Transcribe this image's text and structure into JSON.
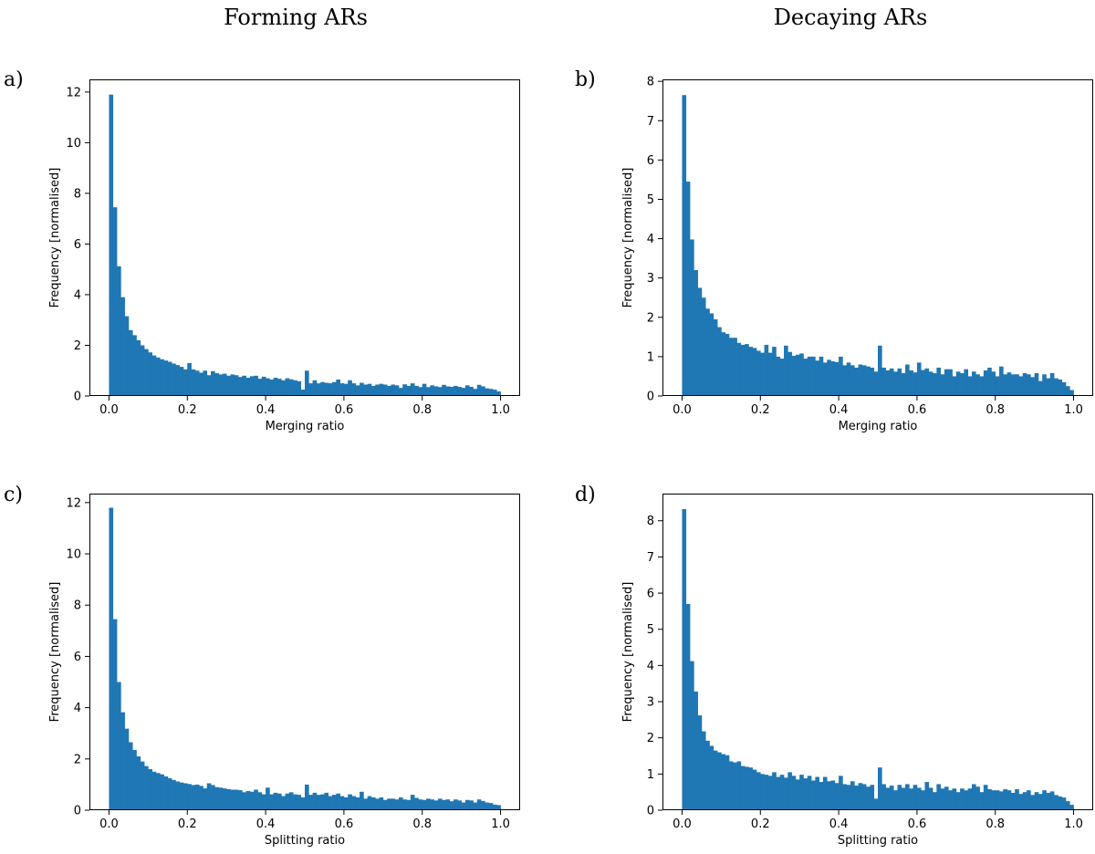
{
  "column_titles": [
    "Forming ARs",
    "Decaying ARs"
  ],
  "colors": {
    "bar": "#1f77b4"
  },
  "chart_data": [
    {
      "type": "bar",
      "panel_label": "a)",
      "xlabel": "Merging ratio",
      "ylabel": "Frequency [normalised]",
      "xlim": [
        -0.05,
        1.05
      ],
      "ylim": [
        0,
        12.5
      ],
      "xticks": [
        0.0,
        0.2,
        0.4,
        0.6,
        0.8,
        1.0
      ],
      "xtick_labels": [
        "0.0",
        "0.2",
        "0.4",
        "0.6",
        "0.8",
        "1.0"
      ],
      "yticks": [
        0,
        2,
        4,
        6,
        8,
        10,
        12
      ],
      "bin_width": 0.01,
      "x": [
        0.0,
        0.01,
        0.02,
        0.03,
        0.04,
        0.05,
        0.06,
        0.07,
        0.08,
        0.09,
        0.1,
        0.11,
        0.12,
        0.13,
        0.14,
        0.15,
        0.16,
        0.17,
        0.18,
        0.19,
        0.2,
        0.21,
        0.22,
        0.23,
        0.24,
        0.25,
        0.26,
        0.27,
        0.28,
        0.29,
        0.3,
        0.31,
        0.32,
        0.33,
        0.34,
        0.35,
        0.36,
        0.37,
        0.38,
        0.39,
        0.4,
        0.41,
        0.42,
        0.43,
        0.44,
        0.45,
        0.46,
        0.47,
        0.48,
        0.49,
        0.5,
        0.51,
        0.52,
        0.53,
        0.54,
        0.55,
        0.56,
        0.57,
        0.58,
        0.59,
        0.6,
        0.61,
        0.62,
        0.63,
        0.64,
        0.65,
        0.66,
        0.67,
        0.68,
        0.69,
        0.7,
        0.71,
        0.72,
        0.73,
        0.74,
        0.75,
        0.76,
        0.77,
        0.78,
        0.79,
        0.8,
        0.81,
        0.82,
        0.83,
        0.84,
        0.85,
        0.86,
        0.87,
        0.88,
        0.89,
        0.9,
        0.91,
        0.92,
        0.93,
        0.94,
        0.95,
        0.96,
        0.97,
        0.98,
        0.99
      ],
      "values": [
        11.9,
        7.45,
        5.12,
        3.9,
        3.15,
        2.6,
        2.4,
        2.2,
        2.0,
        1.85,
        1.72,
        1.6,
        1.52,
        1.45,
        1.4,
        1.35,
        1.28,
        1.22,
        1.15,
        1.05,
        1.3,
        1.05,
        1.0,
        0.92,
        1.0,
        0.82,
        0.98,
        0.9,
        0.85,
        0.88,
        0.8,
        0.85,
        0.82,
        0.75,
        0.8,
        0.72,
        0.78,
        0.8,
        0.68,
        0.76,
        0.7,
        0.65,
        0.72,
        0.68,
        0.62,
        0.7,
        0.66,
        0.62,
        0.58,
        0.25,
        1.0,
        0.5,
        0.62,
        0.5,
        0.55,
        0.52,
        0.5,
        0.55,
        0.65,
        0.5,
        0.48,
        0.62,
        0.5,
        0.42,
        0.52,
        0.45,
        0.48,
        0.4,
        0.45,
        0.48,
        0.45,
        0.4,
        0.45,
        0.42,
        0.32,
        0.46,
        0.4,
        0.5,
        0.4,
        0.35,
        0.48,
        0.35,
        0.42,
        0.38,
        0.35,
        0.44,
        0.38,
        0.36,
        0.4,
        0.36,
        0.32,
        0.42,
        0.36,
        0.28,
        0.44,
        0.38,
        0.3,
        0.28,
        0.25,
        0.18
      ]
    },
    {
      "type": "bar",
      "panel_label": "b)",
      "xlabel": "Merging ratio",
      "ylabel": "Frequency [normalised]",
      "xlim": [
        -0.05,
        1.05
      ],
      "ylim": [
        0,
        8.05
      ],
      "xticks": [
        0.0,
        0.2,
        0.4,
        0.6,
        0.8,
        1.0
      ],
      "xtick_labels": [
        "0.0",
        "0.2",
        "0.4",
        "0.6",
        "0.8",
        "1.0"
      ],
      "yticks": [
        0,
        1,
        2,
        3,
        4,
        5,
        6,
        7,
        8
      ],
      "bin_width": 0.01,
      "x": [
        0.0,
        0.01,
        0.02,
        0.03,
        0.04,
        0.05,
        0.06,
        0.07,
        0.08,
        0.09,
        0.1,
        0.11,
        0.12,
        0.13,
        0.14,
        0.15,
        0.16,
        0.17,
        0.18,
        0.19,
        0.2,
        0.21,
        0.22,
        0.23,
        0.24,
        0.25,
        0.26,
        0.27,
        0.28,
        0.29,
        0.3,
        0.31,
        0.32,
        0.33,
        0.34,
        0.35,
        0.36,
        0.37,
        0.38,
        0.39,
        0.4,
        0.41,
        0.42,
        0.43,
        0.44,
        0.45,
        0.46,
        0.47,
        0.48,
        0.49,
        0.5,
        0.51,
        0.52,
        0.53,
        0.54,
        0.55,
        0.56,
        0.57,
        0.58,
        0.59,
        0.6,
        0.61,
        0.62,
        0.63,
        0.64,
        0.65,
        0.66,
        0.67,
        0.68,
        0.69,
        0.7,
        0.71,
        0.72,
        0.73,
        0.74,
        0.75,
        0.76,
        0.77,
        0.78,
        0.79,
        0.8,
        0.81,
        0.82,
        0.83,
        0.84,
        0.85,
        0.86,
        0.87,
        0.88,
        0.89,
        0.9,
        0.91,
        0.92,
        0.93,
        0.94,
        0.95,
        0.96,
        0.97,
        0.98,
        0.99
      ],
      "values": [
        7.65,
        5.45,
        3.98,
        3.2,
        2.75,
        2.5,
        2.22,
        2.1,
        1.95,
        1.75,
        1.62,
        1.58,
        1.48,
        1.48,
        1.35,
        1.3,
        1.32,
        1.25,
        1.22,
        1.15,
        1.1,
        1.3,
        1.1,
        1.25,
        1.0,
        0.95,
        1.28,
        1.12,
        1.02,
        1.05,
        1.08,
        0.95,
        1.0,
        1.0,
        0.9,
        1.0,
        0.85,
        0.92,
        0.88,
        0.86,
        1.0,
        0.78,
        0.85,
        0.78,
        0.72,
        0.8,
        0.78,
        0.75,
        0.72,
        0.62,
        1.28,
        0.72,
        0.65,
        0.7,
        0.62,
        0.7,
        0.58,
        0.8,
        0.65,
        0.6,
        0.85,
        0.66,
        0.7,
        0.62,
        0.58,
        0.72,
        0.55,
        0.68,
        0.68,
        0.5,
        0.62,
        0.58,
        0.68,
        0.5,
        0.62,
        0.55,
        0.5,
        0.65,
        0.72,
        0.62,
        0.5,
        0.75,
        0.55,
        0.6,
        0.55,
        0.55,
        0.5,
        0.58,
        0.55,
        0.48,
        0.58,
        0.38,
        0.55,
        0.45,
        0.58,
        0.45,
        0.42,
        0.35,
        0.25,
        0.15
      ]
    },
    {
      "type": "bar",
      "panel_label": "c)",
      "xlabel": "Splitting ratio",
      "ylabel": "Frequency [normalised]",
      "xlim": [
        -0.05,
        1.05
      ],
      "ylim": [
        0,
        12.35
      ],
      "xticks": [
        0.0,
        0.2,
        0.4,
        0.6,
        0.8,
        1.0
      ],
      "xtick_labels": [
        "0.0",
        "0.2",
        "0.4",
        "0.6",
        "0.8",
        "1.0"
      ],
      "yticks": [
        0,
        2,
        4,
        6,
        8,
        10,
        12
      ],
      "bin_width": 0.01,
      "x": [
        0.0,
        0.01,
        0.02,
        0.03,
        0.04,
        0.05,
        0.06,
        0.07,
        0.08,
        0.09,
        0.1,
        0.11,
        0.12,
        0.13,
        0.14,
        0.15,
        0.16,
        0.17,
        0.18,
        0.19,
        0.2,
        0.21,
        0.22,
        0.23,
        0.24,
        0.25,
        0.26,
        0.27,
        0.28,
        0.29,
        0.3,
        0.31,
        0.32,
        0.33,
        0.34,
        0.35,
        0.36,
        0.37,
        0.38,
        0.39,
        0.4,
        0.41,
        0.42,
        0.43,
        0.44,
        0.45,
        0.46,
        0.47,
        0.48,
        0.49,
        0.5,
        0.51,
        0.52,
        0.53,
        0.54,
        0.55,
        0.56,
        0.57,
        0.58,
        0.59,
        0.6,
        0.61,
        0.62,
        0.63,
        0.64,
        0.65,
        0.66,
        0.67,
        0.68,
        0.69,
        0.7,
        0.71,
        0.72,
        0.73,
        0.74,
        0.75,
        0.76,
        0.77,
        0.78,
        0.79,
        0.8,
        0.81,
        0.82,
        0.83,
        0.84,
        0.85,
        0.86,
        0.87,
        0.88,
        0.89,
        0.9,
        0.91,
        0.92,
        0.93,
        0.94,
        0.95,
        0.96,
        0.97,
        0.98,
        0.99
      ],
      "values": [
        11.8,
        7.45,
        5.0,
        3.82,
        3.18,
        2.65,
        2.35,
        2.1,
        1.9,
        1.72,
        1.6,
        1.5,
        1.45,
        1.4,
        1.32,
        1.25,
        1.18,
        1.12,
        1.08,
        1.05,
        1.02,
        0.98,
        1.0,
        0.95,
        0.85,
        1.05,
        0.98,
        0.9,
        0.88,
        0.85,
        0.82,
        0.8,
        0.8,
        0.78,
        0.7,
        0.75,
        0.72,
        0.8,
        0.7,
        0.62,
        0.88,
        0.62,
        0.68,
        0.65,
        0.55,
        0.65,
        0.7,
        0.62,
        0.6,
        0.5,
        1.0,
        0.6,
        0.68,
        0.6,
        0.62,
        0.68,
        0.55,
        0.6,
        0.65,
        0.55,
        0.5,
        0.62,
        0.55,
        0.5,
        0.72,
        0.45,
        0.55,
        0.5,
        0.45,
        0.5,
        0.4,
        0.45,
        0.45,
        0.42,
        0.5,
        0.42,
        0.4,
        0.6,
        0.48,
        0.42,
        0.4,
        0.45,
        0.42,
        0.38,
        0.45,
        0.4,
        0.42,
        0.35,
        0.42,
        0.38,
        0.3,
        0.4,
        0.38,
        0.3,
        0.42,
        0.36,
        0.3,
        0.28,
        0.22,
        0.2
      ]
    },
    {
      "type": "bar",
      "panel_label": "d)",
      "xlabel": "Splitting ratio",
      "ylabel": "Frequency [normalised]",
      "xlim": [
        -0.05,
        1.05
      ],
      "ylim": [
        0,
        8.75
      ],
      "xticks": [
        0.0,
        0.2,
        0.4,
        0.6,
        0.8,
        1.0
      ],
      "xtick_labels": [
        "0.0",
        "0.2",
        "0.4",
        "0.6",
        "0.8",
        "1.0"
      ],
      "yticks": [
        0,
        1,
        2,
        3,
        4,
        5,
        6,
        7,
        8
      ],
      "bin_width": 0.01,
      "x": [
        0.0,
        0.01,
        0.02,
        0.03,
        0.04,
        0.05,
        0.06,
        0.07,
        0.08,
        0.09,
        0.1,
        0.11,
        0.12,
        0.13,
        0.14,
        0.15,
        0.16,
        0.17,
        0.18,
        0.19,
        0.2,
        0.21,
        0.22,
        0.23,
        0.24,
        0.25,
        0.26,
        0.27,
        0.28,
        0.29,
        0.3,
        0.31,
        0.32,
        0.33,
        0.34,
        0.35,
        0.36,
        0.37,
        0.38,
        0.39,
        0.4,
        0.41,
        0.42,
        0.43,
        0.44,
        0.45,
        0.46,
        0.47,
        0.48,
        0.49,
        0.5,
        0.51,
        0.52,
        0.53,
        0.54,
        0.55,
        0.56,
        0.57,
        0.58,
        0.59,
        0.6,
        0.61,
        0.62,
        0.63,
        0.64,
        0.65,
        0.66,
        0.67,
        0.68,
        0.69,
        0.7,
        0.71,
        0.72,
        0.73,
        0.74,
        0.75,
        0.76,
        0.77,
        0.78,
        0.79,
        0.8,
        0.81,
        0.82,
        0.83,
        0.84,
        0.85,
        0.86,
        0.87,
        0.88,
        0.89,
        0.9,
        0.91,
        0.92,
        0.93,
        0.94,
        0.95,
        0.96,
        0.97,
        0.98,
        0.99
      ],
      "values": [
        8.32,
        5.7,
        4.12,
        3.28,
        2.62,
        2.18,
        1.92,
        1.78,
        1.65,
        1.6,
        1.55,
        1.52,
        1.35,
        1.32,
        1.35,
        1.22,
        1.2,
        1.18,
        1.12,
        1.05,
        1.0,
        0.98,
        0.95,
        1.05,
        0.92,
        0.98,
        0.9,
        1.05,
        0.95,
        0.85,
        0.98,
        0.88,
        0.95,
        0.82,
        0.92,
        0.78,
        0.92,
        0.8,
        0.82,
        0.75,
        0.95,
        0.72,
        0.7,
        0.8,
        0.68,
        0.75,
        0.72,
        0.65,
        0.7,
        0.32,
        1.18,
        0.72,
        0.62,
        0.68,
        0.55,
        0.7,
        0.62,
        0.72,
        0.6,
        0.7,
        0.62,
        0.55,
        0.78,
        0.62,
        0.5,
        0.72,
        0.6,
        0.65,
        0.55,
        0.6,
        0.5,
        0.6,
        0.55,
        0.6,
        0.72,
        0.65,
        0.5,
        0.7,
        0.58,
        0.55,
        0.55,
        0.52,
        0.58,
        0.55,
        0.48,
        0.58,
        0.45,
        0.5,
        0.55,
        0.42,
        0.5,
        0.45,
        0.55,
        0.48,
        0.52,
        0.42,
        0.38,
        0.35,
        0.25,
        0.15
      ]
    }
  ]
}
